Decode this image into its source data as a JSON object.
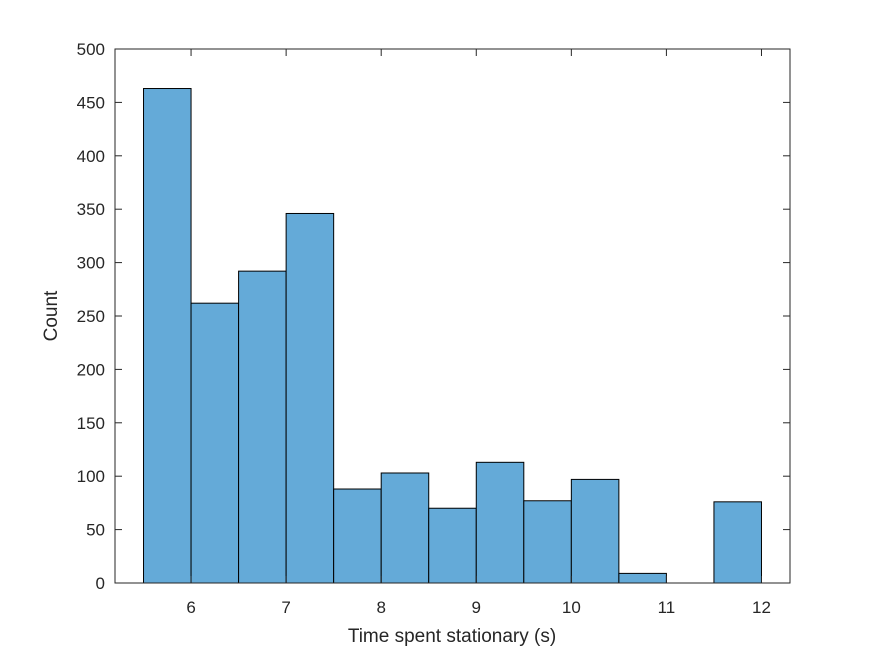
{
  "chart_data": {
    "type": "histogram",
    "title": "",
    "xlabel": "Time spent stationary (s)",
    "ylabel": "Count",
    "xlim": [
      5.2,
      12.3
    ],
    "ylim": [
      0,
      500
    ],
    "xticks": [
      6,
      7,
      8,
      9,
      10,
      11,
      12
    ],
    "yticks": [
      0,
      50,
      100,
      150,
      200,
      250,
      300,
      350,
      400,
      450,
      500
    ],
    "bin_edges": [
      5.5,
      6.0,
      6.5,
      7.0,
      7.5,
      8.0,
      8.5,
      9.0,
      9.5,
      10.0,
      10.5,
      11.0,
      11.5,
      12.0
    ],
    "counts": [
      463,
      262,
      292,
      346,
      88,
      103,
      70,
      113,
      77,
      97,
      9,
      0,
      76
    ],
    "grid": false,
    "legend": "none",
    "bar_color": "#64AAD8",
    "edge_color": "#000000",
    "axis_color": "#262626"
  }
}
